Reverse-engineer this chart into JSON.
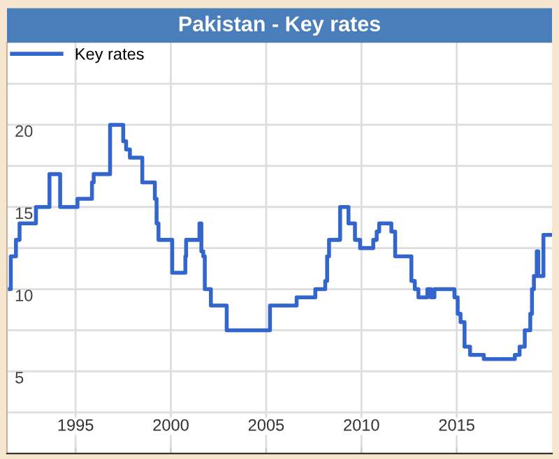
{
  "chart_data": {
    "type": "step",
    "title": "Pakistan - Key rates",
    "x": [
      1991.55,
      1991.6,
      1991.87,
      1992.06,
      1992.92,
      1993.63,
      1994.19,
      1995.1,
      1995.86,
      1995.95,
      1996.81,
      1997.5,
      1997.65,
      1997.85,
      1998.5,
      1999.16,
      1999.25,
      1999.35,
      2000.07,
      2000.76,
      2000.8,
      2001.5,
      2001.6,
      2001.7,
      2001.78,
      2002.1,
      2002.93,
      2005.2,
      2006.6,
      2007.58,
      2008.1,
      2008.2,
      2008.3,
      2008.88,
      2009.32,
      2009.66,
      2009.93,
      2010.62,
      2010.8,
      2010.93,
      2011.57,
      2011.77,
      2012.62,
      2012.8,
      2012.99,
      2013.46,
      2013.65,
      2013.83,
      2014.88,
      2015.05,
      2015.2,
      2015.41,
      2015.7,
      2016.42,
      2018.05,
      2018.3,
      2018.57,
      2018.86,
      2018.95,
      2019.05,
      2019.2,
      2019.28,
      2019.55,
      2020.0
    ],
    "series": [
      {
        "name": "Key rates",
        "color": "#3366cc",
        "values": [
          10,
          12,
          13,
          14,
          15,
          17,
          15,
          15.5,
          16.5,
          17,
          20,
          19,
          18.5,
          18,
          16.5,
          15.5,
          14,
          13,
          11,
          12,
          13,
          14,
          12.3,
          12,
          10,
          9,
          7.5,
          9,
          9.5,
          10,
          10.5,
          12,
          13,
          15,
          14,
          13,
          12.5,
          13,
          13.5,
          14,
          13.5,
          12,
          10.5,
          10,
          9.5,
          10,
          9.5,
          10,
          9.5,
          8.5,
          8,
          6.5,
          6,
          5.75,
          6,
          6.5,
          7.5,
          8.5,
          10,
          10.8,
          12.3,
          10.8,
          13.3,
          13.3
        ]
      }
    ],
    "xlim": [
      1991.4,
      2020.0
    ],
    "xticks": [
      1995,
      2000,
      2005,
      2010,
      2015
    ],
    "ylim": [
      0,
      25
    ],
    "yticks": [
      {
        "value": 2.5,
        "label": null
      },
      5,
      {
        "value": 7.5,
        "label": null
      },
      10,
      {
        "value": 12.5,
        "label": null
      },
      15,
      {
        "value": 17.5,
        "label": null
      },
      20,
      {
        "value": 22.5,
        "label": null
      }
    ],
    "grid": true,
    "legend": "top left",
    "line_style": "solid",
    "marker": "none"
  }
}
